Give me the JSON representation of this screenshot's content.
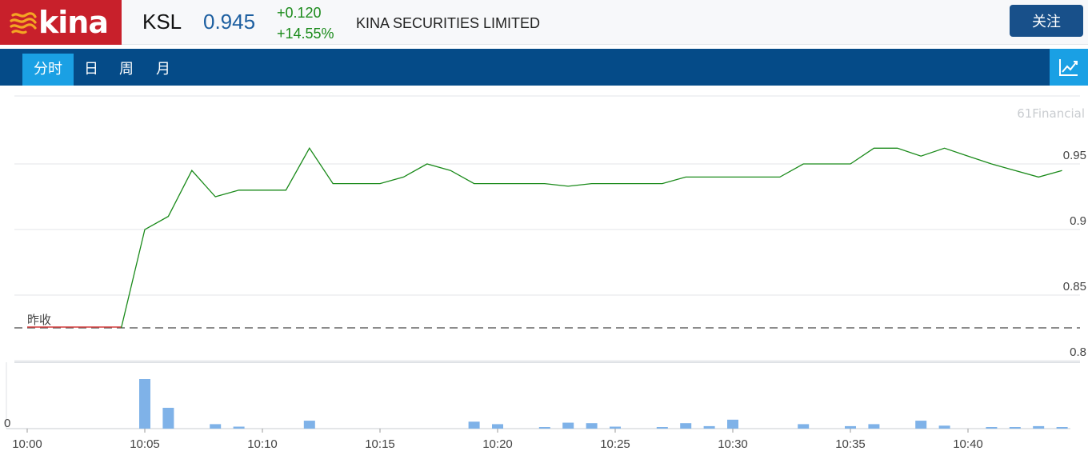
{
  "header": {
    "logo_text": "kina",
    "symbol": "KSL",
    "price": "0.945",
    "change_abs": "+0.120",
    "change_pct": "+14.55%",
    "company": "KINA SECURITIES LIMITED",
    "follow_label": "关注"
  },
  "nav": {
    "tabs": [
      "分时",
      "日",
      "周",
      "月"
    ],
    "active_tab": "分时"
  },
  "colors": {
    "brand_red": "#c8202b",
    "nav_blue": "#054b88",
    "active_tab": "#1aa0e4",
    "price_up": "#1a8a1a",
    "price_line": "#1a8a1a",
    "volume_bar": "#7fb2e8"
  },
  "chart": {
    "watermark": "61Financial",
    "prev_close_label": "昨收",
    "volume_zero_label": "0"
  },
  "chart_data": {
    "type": "line",
    "y_ticks": [
      "0.95",
      "0.9",
      "0.85",
      "0.8"
    ],
    "ylim": [
      0.8,
      0.975
    ],
    "x_ticks": [
      "10:00",
      "10:05",
      "10:10",
      "10:15",
      "10:20",
      "10:25",
      "10:30",
      "10:35",
      "10:40"
    ],
    "prev_close": 0.825,
    "x": [
      "10:00",
      "10:01",
      "10:02",
      "10:03",
      "10:04",
      "10:05",
      "10:06",
      "10:07",
      "10:08",
      "10:09",
      "10:10",
      "10:11",
      "10:12",
      "10:13",
      "10:14",
      "10:15",
      "10:16",
      "10:17",
      "10:18",
      "10:19",
      "10:20",
      "10:21",
      "10:22",
      "10:23",
      "10:24",
      "10:25",
      "10:26",
      "10:27",
      "10:28",
      "10:29",
      "10:30",
      "10:31",
      "10:32",
      "10:33",
      "10:34",
      "10:35",
      "10:36",
      "10:37",
      "10:38",
      "10:39",
      "10:40",
      "10:41",
      "10:42",
      "10:43",
      "10:44"
    ],
    "series": [
      {
        "values": [
          0.825,
          0.825,
          0.825,
          0.825,
          0.825,
          0.9,
          0.91,
          0.945,
          0.925,
          0.93,
          0.93,
          0.93,
          0.962,
          0.935,
          0.935,
          0.935,
          0.94,
          0.95,
          0.945,
          0.935,
          0.935,
          0.935,
          0.935,
          0.933,
          0.935,
          0.935,
          0.935,
          0.935,
          0.94,
          0.94,
          0.94,
          0.94,
          0.94,
          0.95,
          0.95,
          0.95,
          0.962,
          0.962,
          0.956,
          0.962,
          0.956,
          0.95,
          0.945,
          0.94,
          0.945
        ]
      }
    ],
    "volume": [
      0,
      0,
      0,
      0,
      0,
      100,
      42,
      0,
      9,
      4,
      0,
      0,
      16,
      0,
      0,
      0,
      0,
      0,
      0,
      14,
      9,
      0,
      2,
      12,
      11,
      4,
      0,
      2,
      11,
      5,
      18,
      0,
      0,
      9,
      0,
      5,
      9,
      0,
      16,
      6,
      0,
      3,
      2,
      5,
      3
    ]
  }
}
